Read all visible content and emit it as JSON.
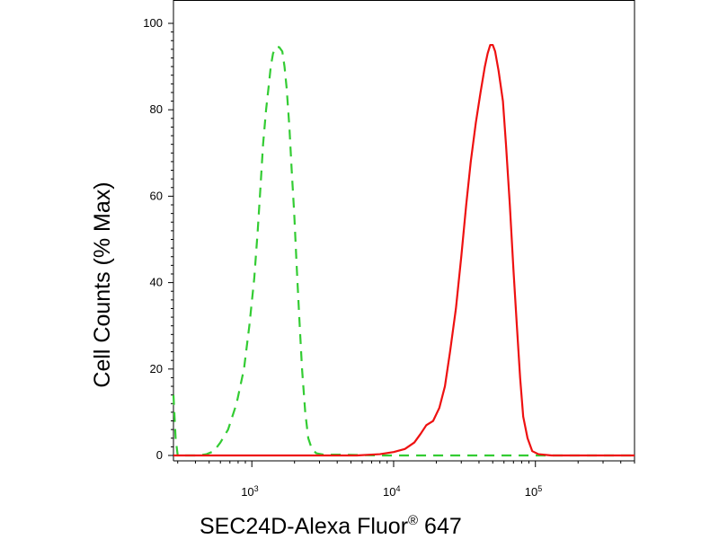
{
  "chart_data": {
    "type": "line",
    "xlabel_main": "SEC24D-Alexa Fluor",
    "xlabel_reg": "®",
    "xlabel_tail": " 647",
    "ylabel": "Cell Counts (% Max)",
    "x_scale": "log",
    "xlim": [
      280,
      500000
    ],
    "ylim": [
      0,
      100
    ],
    "grid": false,
    "y_ticks": [
      {
        "value": 0,
        "label": "0"
      },
      {
        "value": 20,
        "label": "20"
      },
      {
        "value": 40,
        "label": "40"
      },
      {
        "value": 60,
        "label": "60"
      },
      {
        "value": 80,
        "label": "80"
      },
      {
        "value": 100,
        "label": "100"
      }
    ],
    "x_ticks": [
      {
        "value": 1000,
        "base": "10",
        "exp": "3"
      },
      {
        "value": 10000,
        "base": "10",
        "exp": "4"
      },
      {
        "value": 100000,
        "base": "10",
        "exp": "5"
      }
    ],
    "series": [
      {
        "color": "#33cc33",
        "dash": "dashed",
        "points": [
          [
            280,
            14
          ],
          [
            290,
            4
          ],
          [
            300,
            0
          ],
          [
            350,
            0
          ],
          [
            420,
            0
          ],
          [
            480,
            0.3
          ],
          [
            540,
            1
          ],
          [
            600,
            3
          ],
          [
            680,
            6
          ],
          [
            780,
            12
          ],
          [
            880,
            20
          ],
          [
            960,
            30
          ],
          [
            1040,
            41
          ],
          [
            1100,
            52
          ],
          [
            1150,
            62
          ],
          [
            1200,
            72
          ],
          [
            1260,
            80
          ],
          [
            1310,
            85
          ],
          [
            1360,
            90
          ],
          [
            1410,
            93
          ],
          [
            1470,
            94.5
          ],
          [
            1560,
            94.5
          ],
          [
            1640,
            93.5
          ],
          [
            1700,
            90
          ],
          [
            1760,
            85
          ],
          [
            1840,
            76
          ],
          [
            1910,
            66
          ],
          [
            1990,
            56
          ],
          [
            2070,
            44
          ],
          [
            2160,
            32
          ],
          [
            2260,
            20
          ],
          [
            2380,
            10
          ],
          [
            2500,
            4
          ],
          [
            2650,
            1.5
          ],
          [
            2850,
            0.5
          ],
          [
            3200,
            0.2
          ],
          [
            4000,
            0.2
          ],
          [
            8000,
            0
          ],
          [
            500000,
            0
          ]
        ]
      },
      {
        "color": "#ee1111",
        "dash": "solid",
        "points": [
          [
            280,
            0
          ],
          [
            5500,
            0
          ],
          [
            8000,
            0.3
          ],
          [
            10000,
            0.8
          ],
          [
            12000,
            1.5
          ],
          [
            14000,
            3
          ],
          [
            15500,
            5
          ],
          [
            17000,
            7
          ],
          [
            19000,
            8
          ],
          [
            21000,
            11
          ],
          [
            23000,
            16
          ],
          [
            25000,
            24
          ],
          [
            27500,
            34
          ],
          [
            30000,
            46
          ],
          [
            32500,
            58
          ],
          [
            35000,
            68
          ],
          [
            38000,
            77
          ],
          [
            41000,
            84
          ],
          [
            44000,
            90
          ],
          [
            46000,
            93
          ],
          [
            48000,
            95
          ],
          [
            50000,
            95
          ],
          [
            52000,
            93.5
          ],
          [
            55000,
            89
          ],
          [
            59000,
            82
          ],
          [
            62000,
            72
          ],
          [
            66000,
            58
          ],
          [
            70000,
            43
          ],
          [
            74000,
            30
          ],
          [
            78000,
            18
          ],
          [
            82000,
            9
          ],
          [
            88000,
            4
          ],
          [
            95000,
            1
          ],
          [
            105000,
            0.3
          ],
          [
            130000,
            0
          ],
          [
            500000,
            0
          ]
        ]
      }
    ]
  }
}
